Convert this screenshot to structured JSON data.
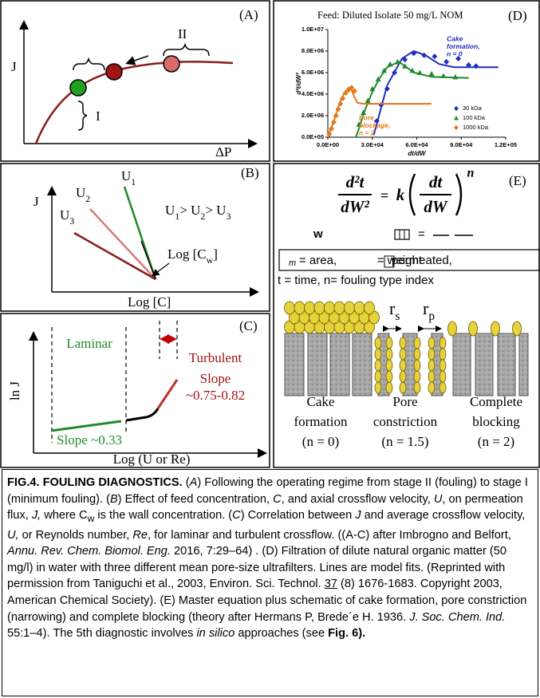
{
  "panels": {
    "A": {
      "label": "(A)",
      "y_label": "J",
      "x_label": "ΔP",
      "stage_1": "I",
      "stage_2": "II"
    },
    "B": {
      "label": "(B)",
      "y_label": "J",
      "x_label": "Log [C]",
      "u1": [
        "U",
        "1"
      ],
      "u2": [
        "U",
        "2"
      ],
      "u3": [
        "U",
        "3"
      ],
      "relation": [
        "U",
        "1",
        "> U",
        "2",
        "> U",
        "3"
      ],
      "cw": [
        "Log [C",
        "w",
        "]"
      ]
    },
    "C": {
      "label": "(C)",
      "y_label": "ln J",
      "x_label": "Log (U or Re)",
      "laminar": "Laminar",
      "turbulent": "Turbulent",
      "slope_turbulent": [
        "Slope",
        "~0.75-0.82"
      ],
      "slope_laminar": "Slope ~0.33"
    },
    "E": {
      "label": "(E)",
      "equation": {
        "num1": "d²t",
        "den1": "dW²",
        "equals": "=",
        "k": "k",
        "num2": "dt",
        "den2": "dW",
        "n": "n"
      },
      "w": "w",
      "equals2": "=",
      "defs": [
        "m",
        "= area,",
        "= weight",
        "permeated,"
      ],
      "defs2": "t = time, n= fouling type index",
      "rs": [
        "r",
        "s"
      ],
      "rp": [
        "r",
        "p"
      ],
      "cake": [
        "Cake",
        "formation",
        "(n = 0)"
      ],
      "pore": [
        "Pore",
        "constriction",
        "(n = 1.5)"
      ],
      "complete": [
        "Complete",
        "blocking",
        "(n = 2)"
      ]
    }
  },
  "chart_data": {
    "type": "scatter",
    "panel_label": "(D)",
    "title": "Feed: Diluted Isolate 50 mg/L NOM",
    "x_label": "dt/dW",
    "y_label": "d²t/dW²",
    "xlim": [
      0,
      120000
    ],
    "ylim": [
      0,
      10000000
    ],
    "xticks": [
      {
        "value": 0,
        "label": "0.0E+00"
      },
      {
        "value": 30000,
        "label": "3.0E+04"
      },
      {
        "value": 60000,
        "label": "6.0E+04"
      },
      {
        "value": 90000,
        "label": "9.0E+04"
      },
      {
        "value": 120000,
        "label": "1.2E+05"
      }
    ],
    "yticks": [
      {
        "value": 0,
        "label": "0.0E+00"
      },
      {
        "value": 2000000,
        "label": "2.0E+06"
      },
      {
        "value": 4000000,
        "label": "4.0E+06"
      },
      {
        "value": 6000000,
        "label": "6.0E+06"
      },
      {
        "value": 8000000,
        "label": "8.0E+06"
      },
      {
        "value": 10000000,
        "label": "1.0E+07"
      }
    ],
    "series": [
      {
        "name": "30 kDa",
        "color": "#1f2fbf",
        "marker": "diamond",
        "x": [
          33000,
          36000,
          40000,
          45000,
          52000,
          58000,
          65000,
          72000,
          80000,
          88000,
          95000,
          100000
        ],
        "values": [
          1500000,
          3000000,
          4500000,
          6000000,
          7200000,
          7800000,
          7600000,
          7500000,
          7000000,
          7300000,
          6700000,
          6600000
        ],
        "fit_x": [
          31000,
          40000,
          50000,
          58000,
          66000,
          75000,
          85000,
          115000
        ],
        "fit_values": [
          200000,
          4800000,
          7300000,
          8000000,
          7600000,
          6800000,
          6500000,
          6500000
        ]
      },
      {
        "name": "100 kDa",
        "color": "#1e8a2a",
        "marker": "triangle",
        "x": [
          21000,
          24000,
          27000,
          30000,
          34000,
          38000,
          42000,
          47000,
          52000,
          57000,
          62000,
          70000,
          78000,
          86000
        ],
        "values": [
          1200000,
          2300000,
          3400000,
          4500000,
          5400000,
          6200000,
          6800000,
          7000000,
          6600000,
          6200000,
          6000000,
          5900000,
          5700000,
          5600000
        ],
        "fit_x": [
          19000,
          25000,
          30000,
          35000,
          40000,
          48000,
          58000,
          70000,
          95000
        ],
        "fit_values": [
          0,
          2500000,
          4200000,
          5500000,
          6500000,
          7000000,
          6000000,
          5600000,
          5500000
        ]
      },
      {
        "name": "1000 kDa",
        "color": "#e07a1a",
        "marker": "diamond",
        "x": [
          1000,
          2500,
          4000,
          5500,
          7000,
          8500,
          10000,
          12000,
          14000,
          16000,
          18000
        ],
        "values": [
          300000,
          800000,
          1400000,
          2000000,
          2600000,
          3100000,
          3600000,
          4100000,
          4400000,
          4600000,
          4300000
        ],
        "fit_x": [
          0,
          4000,
          8000,
          11000,
          14000,
          16000,
          18000,
          20000,
          24000,
          70000
        ],
        "fit_values": [
          0,
          1500000,
          3200000,
          4100000,
          4600000,
          4400000,
          3700000,
          3200000,
          3100000,
          3100000
        ]
      }
    ],
    "annotations": [
      {
        "text": [
          "Cake",
          "formation,",
          "n = 0"
        ],
        "color": "#1f2fbf"
      },
      {
        "text": [
          "Pore",
          "blockage,",
          "n = 2"
        ],
        "color": "#e07a1a"
      }
    ]
  },
  "caption": [
    "FIG.4. FOULING DIAGNOSTICS.",
    " (",
    "A",
    ") Following the operating regime from stage II (fouling) to stage I (minimum fouling). (",
    "B",
    ") Effect of feed concentration, ",
    "C",
    ", and axial crossflow velocity, ",
    "U",
    ", on permeation flux, ",
    "J,",
    " where C",
    "w",
    " is the wall concentration. (",
    "C",
    ") Correlation between ",
    "J",
    " and average crossflow velocity, ",
    "U,",
    " or Reynolds number, ",
    "Re",
    ", for laminar and turbulent crossflow. ((A-C) after Imbrogno and Belfort,  ",
    "Annu. Rev. Chem. Biomol. Eng.",
    " 2016, 7:29–64) . (D) Filtration of dilute natural organic matter (50 mg/l) in water with three different mean pore-size ultrafilters. Lines are model fits. (Reprinted with permission from Taniguchi et al., 2003, Environ. Sci. Technol. ",
    "37",
    " (8) 1676-1683. Copyright 2003, American Chemical Society). (E) Master equation plus schematic of cake formation, pore constriction (narrowing) and complete blocking (theory after Hermans P, Brede´e H. 1936. ",
    "J. Soc. Chem. Ind.",
    " 55:1–4). The 5th diagnostic involves ",
    "in silico",
    " approaches (see ",
    "Fig. 6)."
  ]
}
